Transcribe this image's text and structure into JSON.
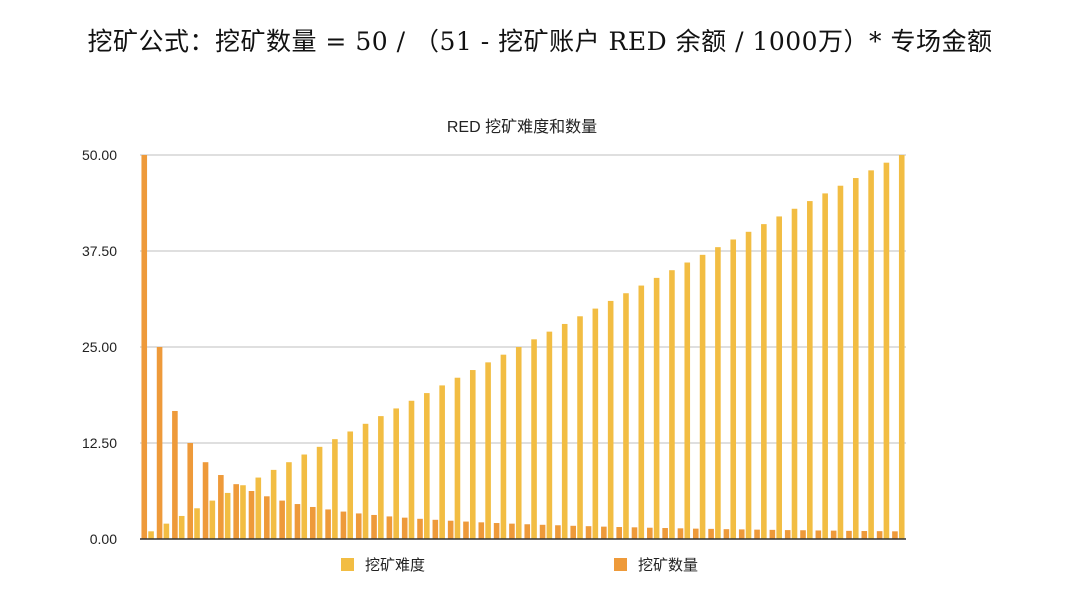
{
  "formula": "挖矿公式：挖矿数量 = 50 / （51 - 挖矿账户 RED 余额 / 1000万）* 专场金额",
  "chart_data": {
    "type": "bar",
    "title": "RED 挖矿难度和数量",
    "xlabel": "",
    "ylabel": "",
    "ylim": [
      0,
      50
    ],
    "yticks": [
      "0.00",
      "12.50",
      "25.00",
      "37.50",
      "50.00"
    ],
    "grid": true,
    "legend_position": "bottom",
    "series": [
      {
        "name": "挖矿难度",
        "color": "#F2BD43",
        "values": [
          1,
          2,
          3,
          4,
          5,
          6,
          7,
          8,
          9,
          10,
          11,
          12,
          13,
          14,
          15,
          16,
          17,
          18,
          19,
          20,
          21,
          22,
          23,
          24,
          25,
          26,
          27,
          28,
          29,
          30,
          31,
          32,
          33,
          34,
          35,
          36,
          37,
          38,
          39,
          40,
          41,
          42,
          43,
          44,
          45,
          46,
          47,
          48,
          49,
          50
        ]
      },
      {
        "name": "挖矿数量",
        "color": "#EE9A3A",
        "values": [
          50,
          25,
          16.67,
          12.5,
          10,
          8.33,
          7.14,
          6.25,
          5.56,
          5,
          4.55,
          4.17,
          3.85,
          3.57,
          3.33,
          3.13,
          2.94,
          2.78,
          2.63,
          2.5,
          2.38,
          2.27,
          2.17,
          2.08,
          2,
          1.92,
          1.85,
          1.79,
          1.72,
          1.67,
          1.61,
          1.56,
          1.52,
          1.47,
          1.43,
          1.39,
          1.35,
          1.32,
          1.28,
          1.25,
          1.22,
          1.19,
          1.16,
          1.14,
          1.11,
          1.09,
          1.06,
          1.04,
          1.02,
          1
        ]
      }
    ]
  }
}
